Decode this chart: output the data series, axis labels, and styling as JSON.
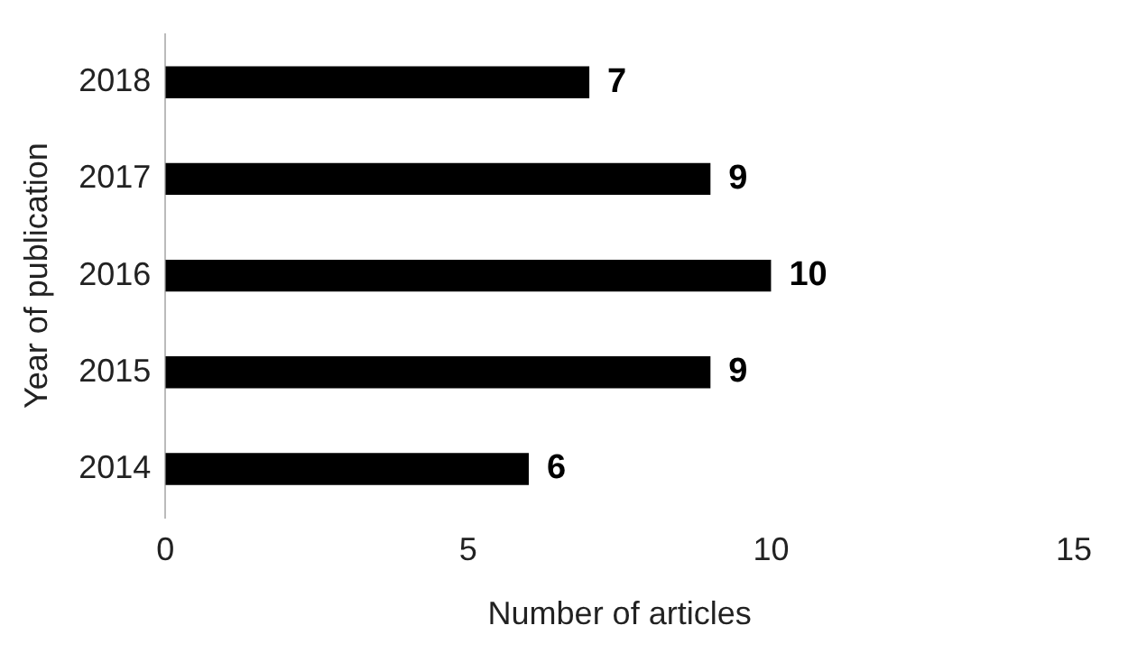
{
  "chart_data": {
    "type": "bar",
    "orientation": "horizontal",
    "xlabel": "Number of articles",
    "ylabel": "Year of publication",
    "categories": [
      "2018",
      "2017",
      "2016",
      "2015",
      "2014"
    ],
    "values": [
      7,
      9,
      10,
      9,
      6
    ],
    "color": "#000000",
    "xlim": [
      0,
      15
    ],
    "xticks": [
      0,
      5,
      10,
      15
    ],
    "grid": false,
    "legend": false,
    "data_labels": true
  }
}
